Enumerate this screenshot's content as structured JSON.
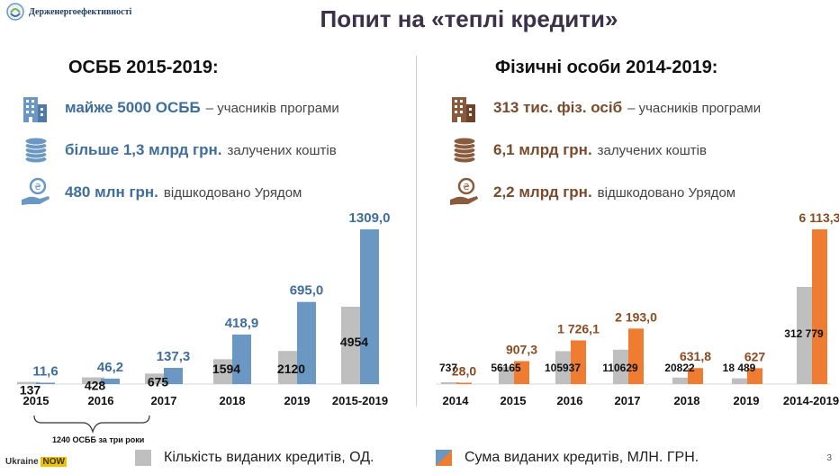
{
  "header": {
    "logo_text": "Держенергоефективності",
    "title": "Попит на «теплі кредити»"
  },
  "left": {
    "heading": "ОСББ 2015-2019:",
    "stats": [
      {
        "strong": "майже 5000 ОСББ",
        "rest": " – учасників програми",
        "icon": "building-icon"
      },
      {
        "strong": "більше 1,3 млрд грн.",
        "rest": "залучених коштів",
        "icon": "coins-icon"
      },
      {
        "strong": "480 млн грн.",
        "rest": "відшкодовано Урядом",
        "icon": "hand-coin-icon"
      }
    ],
    "brace_note": "1240 ОСББ за три роки"
  },
  "right": {
    "heading": "Фізичні особи 2014-2019:",
    "stats": [
      {
        "strong": "313 тис. фіз. осіб",
        "rest": " – учасників програми",
        "icon": "building-icon"
      },
      {
        "strong": "6,1 млрд грн.",
        "rest": "залучених коштів",
        "icon": "coins-icon"
      },
      {
        "strong": "2,2 млрд грн.",
        "rest": "відшкодовано Урядом",
        "icon": "hand-coin-icon"
      }
    ]
  },
  "legend": {
    "count_label": "Кількість виданих кредитів, ОД.",
    "sum_label": "Сума виданих кредитів, МЛН. ГРН."
  },
  "footer": {
    "logo_prefix": "Ukraine ",
    "logo_highlight": "NOW",
    "page": "3"
  },
  "colors": {
    "count": "#bfbfbf",
    "sum_left": "#6b97c3",
    "sum_right": "#ee7c33",
    "label_left": "#3f6e9b",
    "label_right": "#8a4b20"
  },
  "chart_data": [
    {
      "type": "bar",
      "categories": [
        "2015",
        "2016",
        "2017",
        "2018",
        "2019",
        "2015-2019"
      ],
      "series": [
        {
          "name": "Кількість виданих кредитів, ОД.",
          "values": [
            137,
            428,
            675,
            1594,
            2120,
            4954
          ],
          "labels": [
            "137",
            "428",
            "675",
            "1594",
            "2120",
            "4954"
          ]
        },
        {
          "name": "Сума виданих кредитів, МЛН. ГРН.",
          "values": [
            11.6,
            46.2,
            137.3,
            418.9,
            695.0,
            1309.0
          ],
          "labels": [
            "11,6",
            "46,2",
            "137,3",
            "418,9",
            "695,0",
            "1309,0"
          ]
        }
      ]
    },
    {
      "type": "bar",
      "categories": [
        "2014",
        "2015",
        "2016",
        "2017",
        "2018",
        "2019",
        "2014-2019"
      ],
      "series": [
        {
          "name": "Кількість виданих кредитів, ОД.",
          "values": [
            737,
            56165,
            105937,
            110629,
            20822,
            18489,
            312779
          ],
          "labels": [
            "737",
            "56165",
            "105937",
            "110629",
            "20822",
            "18 489",
            "312 779"
          ]
        },
        {
          "name": "Сума виданих кредитів, МЛН. ГРН.",
          "values": [
            28.0,
            907.3,
            1726.1,
            2193.0,
            631.8,
            627,
            6113.3
          ],
          "labels": [
            "28,0",
            "907,3",
            "1 726,1",
            "2 193,0",
            "631,8",
            "627",
            "6 113,3"
          ]
        }
      ]
    }
  ]
}
